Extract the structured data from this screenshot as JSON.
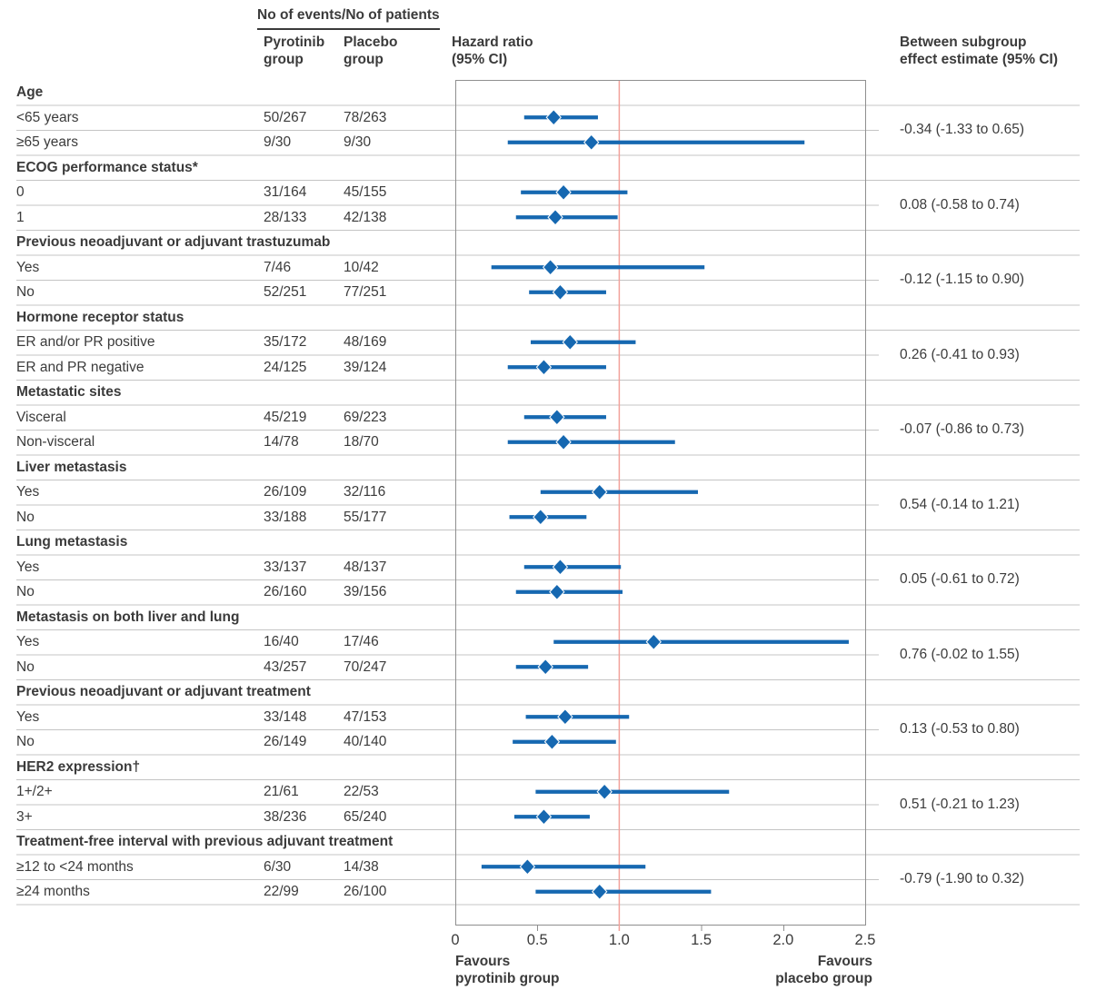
{
  "header": {
    "events_patients": "No of events/No of patients",
    "pyrotinib": "Pyrotinib\ngroup",
    "placebo": "Placebo\ngroup",
    "hazard_ratio": "Hazard ratio\n(95% CI)",
    "between_subgroup": "Between subgroup\neffect estimate (95% CI)"
  },
  "footer": {
    "favours_left": "Favours\npyrotinib group",
    "favours_right": "Favours\nplacebo group"
  },
  "colors": {
    "marker_blue": "#1668b1",
    "reference_red": "#f2a19b",
    "gridline": "#c4c4c4",
    "border": "#8f8f8f",
    "text": "#3b3b3b"
  },
  "chart_data": {
    "type": "forest",
    "x_axis_label": "Hazard ratio (95% CI)",
    "xlim": [
      0,
      2.5
    ],
    "x_ticks": [
      0,
      0.5,
      1.0,
      1.5,
      2.0,
      2.5
    ],
    "x_tick_labels": [
      "0",
      "0.5",
      "1.0",
      "1.5",
      "2.0",
      "2.5"
    ],
    "reference_line": 1.0,
    "legend_position": "none",
    "grid": "row-separators",
    "groups": [
      {
        "name": "Age",
        "effect": "-0.34 (-1.33 to 0.65)",
        "rows": [
          {
            "label": "<65 years",
            "pyrotinib": "50/267",
            "placebo": "78/263",
            "hr": 0.6,
            "lo": 0.42,
            "hi": 0.87
          },
          {
            "label": "≥65 years",
            "pyrotinib": "9/30",
            "placebo": "9/30",
            "hr": 0.83,
            "lo": 0.32,
            "hi": 2.13
          }
        ]
      },
      {
        "name": "ECOG performance status*",
        "effect": "0.08 (-0.58 to 0.74)",
        "rows": [
          {
            "label": "0",
            "pyrotinib": "31/164",
            "placebo": "45/155",
            "hr": 0.66,
            "lo": 0.4,
            "hi": 1.05
          },
          {
            "label": "1",
            "pyrotinib": "28/133",
            "placebo": "42/138",
            "hr": 0.61,
            "lo": 0.37,
            "hi": 0.99
          }
        ]
      },
      {
        "name": "Previous neoadjuvant or adjuvant trastuzumab",
        "effect": "-0.12 (-1.15 to 0.90)",
        "rows": [
          {
            "label": "Yes",
            "pyrotinib": "7/46",
            "placebo": "10/42",
            "hr": 0.58,
            "lo": 0.22,
            "hi": 1.52
          },
          {
            "label": "No",
            "pyrotinib": "52/251",
            "placebo": "77/251",
            "hr": 0.64,
            "lo": 0.45,
            "hi": 0.92
          }
        ]
      },
      {
        "name": "Hormone receptor status",
        "effect": "0.26 (-0.41 to 0.93)",
        "rows": [
          {
            "label": "ER and/or PR positive",
            "pyrotinib": "35/172",
            "placebo": "48/169",
            "hr": 0.7,
            "lo": 0.46,
            "hi": 1.1
          },
          {
            "label": "ER and PR negative",
            "pyrotinib": "24/125",
            "placebo": "39/124",
            "hr": 0.54,
            "lo": 0.32,
            "hi": 0.92
          }
        ]
      },
      {
        "name": "Metastatic sites",
        "effect": "-0.07 (-0.86 to 0.73)",
        "rows": [
          {
            "label": "Visceral",
            "pyrotinib": "45/219",
            "placebo": "69/223",
            "hr": 0.62,
            "lo": 0.42,
            "hi": 0.92
          },
          {
            "label": "Non-visceral",
            "pyrotinib": "14/78",
            "placebo": "18/70",
            "hr": 0.66,
            "lo": 0.32,
            "hi": 1.34
          }
        ]
      },
      {
        "name": "Liver metastasis",
        "effect": "0.54 (-0.14 to 1.21)",
        "rows": [
          {
            "label": "Yes",
            "pyrotinib": "26/109",
            "placebo": "32/116",
            "hr": 0.88,
            "lo": 0.52,
            "hi": 1.48
          },
          {
            "label": "No",
            "pyrotinib": "33/188",
            "placebo": "55/177",
            "hr": 0.52,
            "lo": 0.33,
            "hi": 0.8
          }
        ]
      },
      {
        "name": "Lung metastasis",
        "effect": "0.05 (-0.61 to 0.72)",
        "rows": [
          {
            "label": "Yes",
            "pyrotinib": "33/137",
            "placebo": "48/137",
            "hr": 0.64,
            "lo": 0.42,
            "hi": 1.01
          },
          {
            "label": "No",
            "pyrotinib": "26/160",
            "placebo": "39/156",
            "hr": 0.62,
            "lo": 0.37,
            "hi": 1.02
          }
        ]
      },
      {
        "name": "Metastasis on both liver and lung",
        "effect": "0.76 (-0.02 to 1.55)",
        "rows": [
          {
            "label": "Yes",
            "pyrotinib": "16/40",
            "placebo": "17/46",
            "hr": 1.21,
            "lo": 0.6,
            "hi": 2.4
          },
          {
            "label": "No",
            "pyrotinib": "43/257",
            "placebo": "70/247",
            "hr": 0.55,
            "lo": 0.37,
            "hi": 0.81
          }
        ]
      },
      {
        "name": "Previous neoadjuvant or adjuvant treatment",
        "effect": "0.13 (-0.53 to 0.80)",
        "rows": [
          {
            "label": "Yes",
            "pyrotinib": "33/148",
            "placebo": "47/153",
            "hr": 0.67,
            "lo": 0.43,
            "hi": 1.06
          },
          {
            "label": "No",
            "pyrotinib": "26/149",
            "placebo": "40/140",
            "hr": 0.59,
            "lo": 0.35,
            "hi": 0.98
          }
        ]
      },
      {
        "name": "HER2 expression†",
        "effect": "0.51 (-0.21 to 1.23)",
        "rows": [
          {
            "label": "1+/2+",
            "pyrotinib": "21/61",
            "placebo": "22/53",
            "hr": 0.91,
            "lo": 0.49,
            "hi": 1.67
          },
          {
            "label": "3+",
            "pyrotinib": "38/236",
            "placebo": "65/240",
            "hr": 0.54,
            "lo": 0.36,
            "hi": 0.82
          }
        ]
      },
      {
        "name": "Treatment-free interval with previous adjuvant treatment",
        "effect": "-0.79 (-1.90 to 0.32)",
        "rows": [
          {
            "label": "≥12 to <24 months",
            "pyrotinib": "6/30",
            "placebo": "14/38",
            "hr": 0.44,
            "lo": 0.16,
            "hi": 1.16
          },
          {
            "label": "≥24 months",
            "pyrotinib": "22/99",
            "placebo": "26/100",
            "hr": 0.88,
            "lo": 0.49,
            "hi": 1.56
          }
        ]
      }
    ]
  }
}
